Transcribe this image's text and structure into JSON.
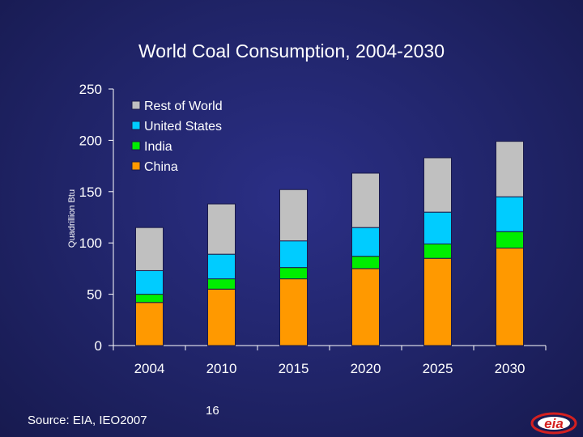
{
  "slide": {
    "title": "World Coal Consumption, 2004-2030",
    "source": "Source:  EIA, IEO2007",
    "page_number": "16",
    "logo_text": "eia"
  },
  "colors": {
    "China": "#ff9900",
    "India": "#00ee00",
    "United States": "#00ccff",
    "Rest of World": "#c0c0c0",
    "axis": "#ffffff",
    "bar_outline": "#1a1a4a"
  },
  "chart_data": {
    "type": "bar",
    "stacked": true,
    "title": "World Coal Consumption, 2004-2030",
    "xlabel": "",
    "ylabel": "Quadrillion Btu",
    "ylim": [
      0,
      250
    ],
    "yticks": [
      0,
      50,
      100,
      150,
      200,
      250
    ],
    "categories": [
      "2004",
      "2010",
      "2015",
      "2020",
      "2025",
      "2030"
    ],
    "series": [
      {
        "name": "China",
        "values": [
          42,
          55,
          65,
          75,
          85,
          95
        ]
      },
      {
        "name": "India",
        "values": [
          8,
          10,
          11,
          12,
          14,
          16
        ]
      },
      {
        "name": "United States",
        "values": [
          23,
          24,
          26,
          28,
          31,
          34
        ]
      },
      {
        "name": "Rest of World",
        "values": [
          42,
          49,
          50,
          53,
          53,
          54
        ]
      }
    ],
    "legend": {
      "placement": "top-left",
      "order": [
        "Rest of World",
        "United States",
        "India",
        "China"
      ]
    }
  }
}
